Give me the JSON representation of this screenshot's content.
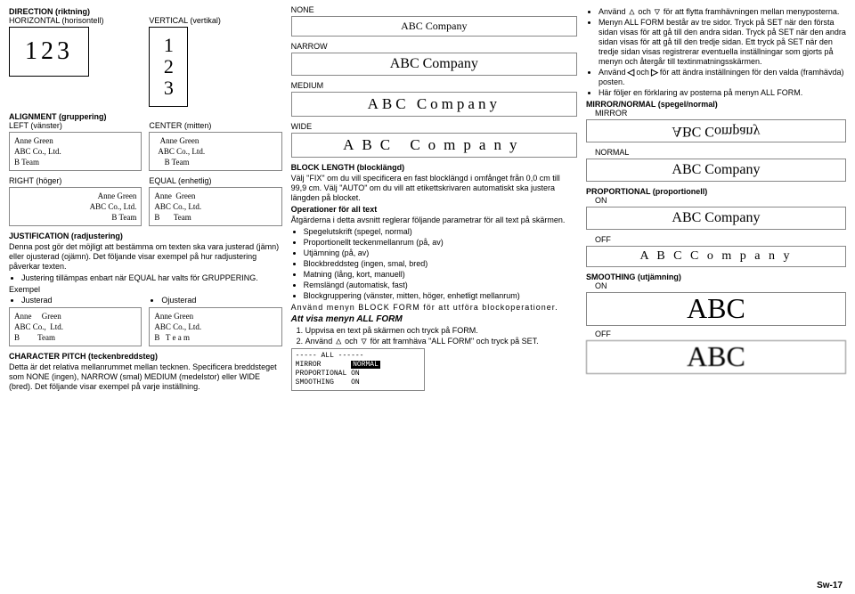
{
  "page_number": "Sw-17",
  "col1": {
    "direction_hdr": "DIRECTION (riktning)",
    "horizontal": "HORIZONTAL (horisontell)",
    "vertical": "VERTICAL (vertikal)",
    "box_h": "123",
    "box_v": "1\n2\n3",
    "alignment_hdr": "ALIGNMENT (gruppering)",
    "left": "LEFT (vänster)",
    "center": "CENTER (mitten)",
    "right": "RIGHT (höger)",
    "equal": "EQUAL (enhetlig)",
    "list_left": "Anne Green\nABC Co., Ltd.\nB Team",
    "list_center": "   Anne Green\n  ABC Co., Ltd.\n     B Team",
    "list_right": "      Anne Green\n    ABC Co., Ltd.\n          B Team",
    "list_equal": "Anne  Green\nABC Co., Ltd.\nB       Team",
    "just_hdr": "JUSTIFICATION (radjustering)",
    "just_body": "Denna post gör det möjligt att bestämma om texten ska vara justerad (jämn) eller ojusterad (ojämn). Det följande visar exempel på hur radjustering påverkar texten.",
    "just_bullet": "Justering tillämpas enbart när EQUAL har valts för GRUPPERING.",
    "exempel": "Exempel",
    "justerad": "Justerad",
    "ojusterad": "Ojusterad",
    "list_just": "Anne     Green\nABC Co.,  Ltd.\nB         Team",
    "list_ojust": "Anne Green\nABC Co., Ltd.\nB   T e a m",
    "pitch_hdr": "CHARACTER PITCH (teckenbreddsteg)",
    "pitch_body": "Detta är det relativa mellanrummet mellan tecknen. Specificera breddsteget som NONE (ingen), NARROW (smal) MEDIUM (medelstor) eller WIDE (bred). Det följande visar exempel på varje inställning."
  },
  "col2": {
    "none": "NONE",
    "narrow": "NARROW",
    "medium": "MEDIUM",
    "wide": "WIDE",
    "abc": "ABC Company",
    "block_hdr": "BLOCK LENGTH (blocklängd)",
    "block_body": "Välj \"FIX\" om du vill specificera en fast blocklängd i omfånget från 0,0 cm till 99,9 cm. Välj \"AUTO\" om du vill att etikettskrivaren automatiskt ska justera längden på blocket.",
    "ops_hdr": "Operationer för all text",
    "ops_body": "Åtgärderna i detta avsnitt reglerar följande parametrar för all text på skärmen.",
    "ops_list": [
      "Spegelutskrift (spegel, normal)",
      "Proportionellt teckenmellanrum (på, av)",
      "Utjämning (på, av)",
      "Blockbreddsteg (ingen, smal, bred)",
      "Matning (lång, kort, manuell)",
      "Remslängd (automatisk, fast)",
      "Blockgruppering (vänster, mitten, höger, enhetligt mellanrum)"
    ],
    "use_menu": "Använd menyn BLOCK FORM för att utföra blockoperationer.",
    "show_hdr": "Att visa menyn ALL FORM",
    "step1": "Uppvisa en text på skärmen och tryck på FORM.",
    "step2a": "Använd ",
    "step2b": " och ",
    "step2c": " för att framhäva \"ALL FORM\" och tryck på SET.",
    "allform_box": "----- ALL ------\nMIRROR       NORMAL \nPROPORTIONAL ON\nSMOOTHING    ON"
  },
  "col3": {
    "b1a": "Använd ",
    "b1b": " och ",
    "b1c": " för att flytta framhävningen mellan menyposterna.",
    "b2": "Menyn ALL FORM består av tre sidor. Tryck på SET när den första sidan visas för att gå till den andra sidan. Tryck på SET när den andra sidan visas för att gå till den tredje sidan. Ett tryck på SET när den tredje sidan visas registrerar eventuella inställningar som gjorts på menyn och återgår till textinmatningsskärmen.",
    "b3a": "Använd ",
    "b3b": " och ",
    "b3c": " för att ändra inställningen för den valda (framhävda) posten.",
    "b4": "Här följer en förklaring av posterna på menyn ALL FORM.",
    "mirror_hdr": "MIRROR/NORMAL (spegel/normal)",
    "mirror": "MIRROR",
    "normal": "NORMAL",
    "abc": "ABC Company",
    "prop_hdr": "PROPORTIONAL (proportionell)",
    "on": "ON",
    "off": "OFF",
    "abc_off": "A B C   C o m p a n y",
    "smooth_hdr": "SMOOTHING (utjämning)",
    "abc_big": "ABC"
  }
}
